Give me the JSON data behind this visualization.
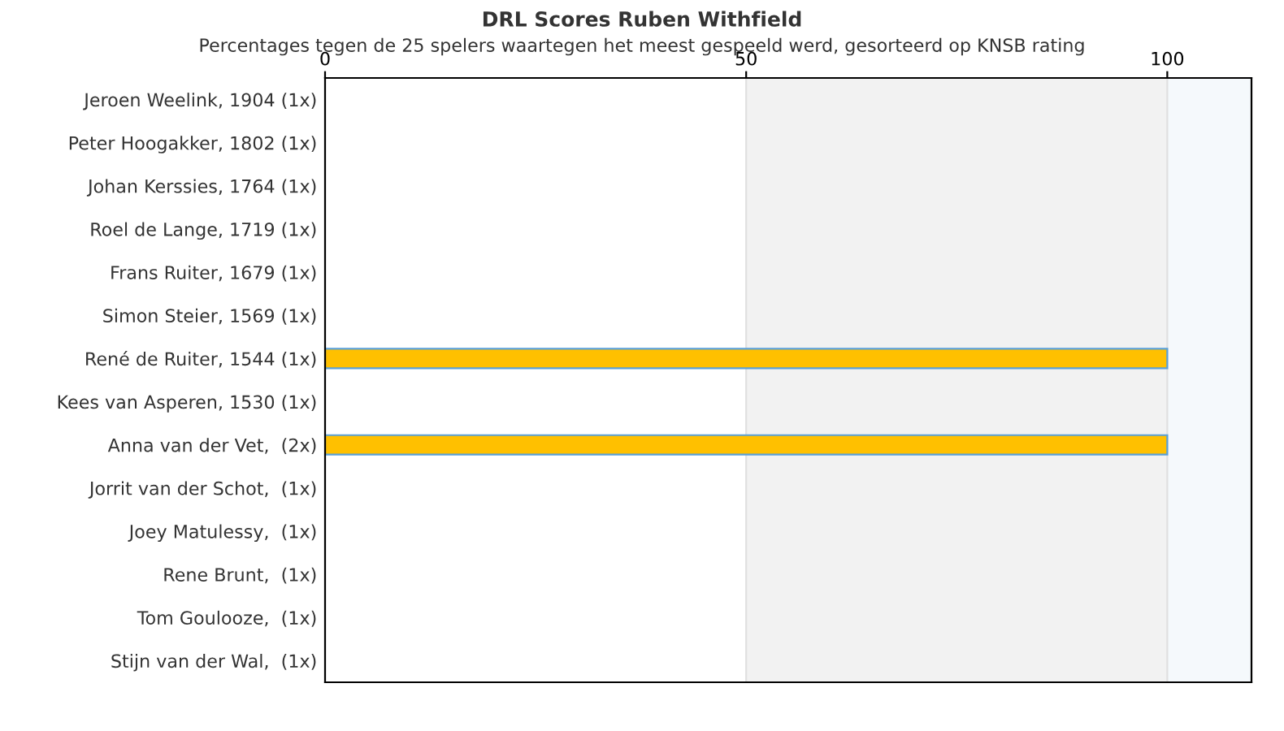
{
  "chart_data": {
    "type": "bar",
    "orientation": "horizontal",
    "title": "DRL Scores Ruben Withfield",
    "subtitle": "Percentages tegen de 25 spelers waartegen het meest gespeeld werd, gesorteerd op KNSB rating",
    "categories": [
      "Jeroen Weelink, 1904 (1x)",
      "Peter Hoogakker, 1802 (1x)",
      "Johan Kerssies, 1764 (1x)",
      "Roel de Lange, 1719 (1x)",
      "Frans Ruiter, 1679 (1x)",
      "Simon Steier, 1569 (1x)",
      "René de Ruiter, 1544 (1x)",
      "Kees van Asperen, 1530 (1x)",
      "Anna van der Vet,  (2x)",
      "Jorrit van der Schot,  (1x)",
      "Joey Matulessy,  (1x)",
      "Rene Brunt,  (1x)",
      "Tom Goulooze,  (1x)",
      "Stijn van der Wal,  (1x)"
    ],
    "values": [
      0,
      0,
      0,
      0,
      0,
      0,
      100,
      0,
      100,
      0,
      0,
      0,
      0,
      0
    ],
    "color": "#ffc000",
    "xlim": [
      0,
      110
    ],
    "xticks": [
      0,
      50,
      100
    ],
    "bands": [
      {
        "axis": "x",
        "from": 50,
        "to": 100,
        "color": "#f2f2f2"
      },
      {
        "axis": "x",
        "from": 100,
        "to": 110,
        "color": "#f5f9fc"
      }
    ],
    "grid": "x",
    "legend": false
  }
}
